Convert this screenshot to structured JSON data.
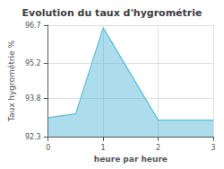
{
  "chart_data": {
    "type": "area",
    "title": "Evolution du taux d'hygrométrie",
    "xlabel": "heure par heure",
    "ylabel": "Taux hygrométrie %",
    "x": [
      0,
      0.5,
      1,
      2,
      3
    ],
    "values": [
      93.05,
      93.2,
      96.6,
      92.95,
      92.95
    ],
    "color": "#5bbcda",
    "xlim": [
      0,
      3
    ],
    "xticks": [
      0,
      1,
      2,
      3
    ],
    "ylim": [
      92.3,
      96.7
    ],
    "yticks": [
      92.3,
      93.8,
      95.2,
      96.7
    ],
    "grid": true
  }
}
